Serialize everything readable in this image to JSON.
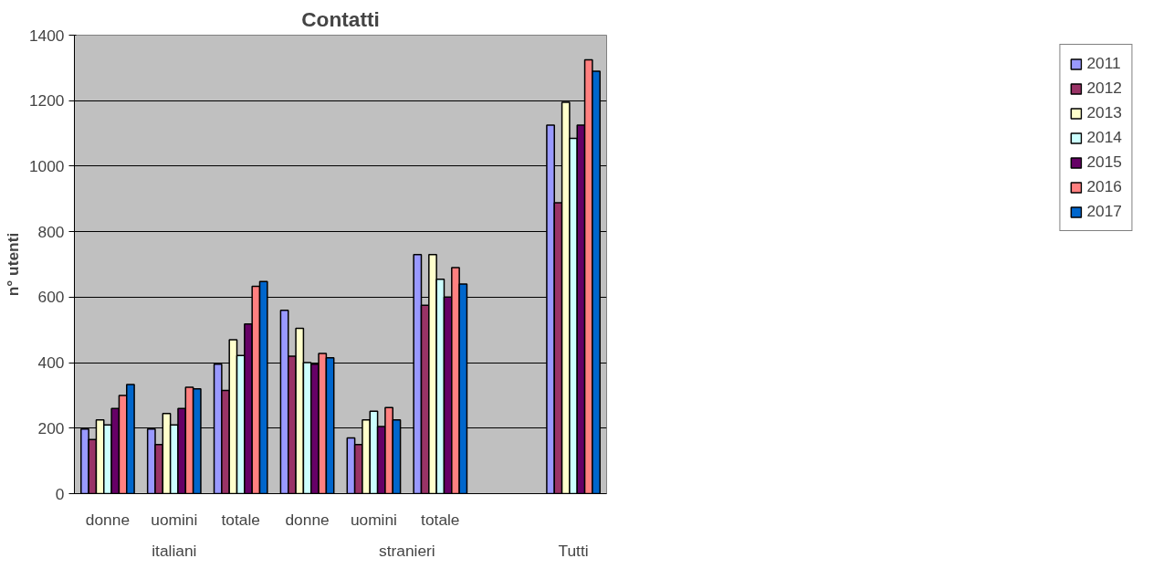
{
  "chart_data": {
    "type": "bar",
    "title": "Contatti",
    "ylabel": "n° utenti",
    "categories": [
      "donne",
      "uomini",
      "totale",
      "donne",
      "uomini",
      "totale",
      null,
      null
    ],
    "annotations": [
      "italiani",
      "stranieri",
      "Tutti"
    ],
    "series": [
      {
        "name": "2011",
        "color": "#9999ff",
        "values": [
          197,
          197,
          395,
          560,
          170,
          730,
          null,
          1125
        ]
      },
      {
        "name": "2012",
        "color": "#993366",
        "values": [
          165,
          150,
          315,
          420,
          150,
          575,
          null,
          888
        ]
      },
      {
        "name": "2013",
        "color": "#ffffcc",
        "values": [
          225,
          245,
          470,
          505,
          225,
          730,
          null,
          1195
        ]
      },
      {
        "name": "2014",
        "color": "#ccffff",
        "values": [
          210,
          210,
          422,
          400,
          252,
          655,
          null,
          1085
        ]
      },
      {
        "name": "2015",
        "color": "#660066",
        "values": [
          260,
          260,
          518,
          395,
          205,
          600,
          null,
          1125
        ]
      },
      {
        "name": "2016",
        "color": "#ff8080",
        "values": [
          300,
          325,
          633,
          428,
          263,
          690,
          null,
          1325
        ]
      },
      {
        "name": "2017",
        "color": "#0066cc",
        "values": [
          333,
          320,
          648,
          415,
          225,
          640,
          null,
          1290
        ]
      }
    ],
    "ylim": [
      0,
      1400
    ],
    "yticks": [
      0,
      200,
      400,
      600,
      800,
      1000,
      1200,
      1400
    ],
    "grid": "y",
    "legend": "right"
  }
}
